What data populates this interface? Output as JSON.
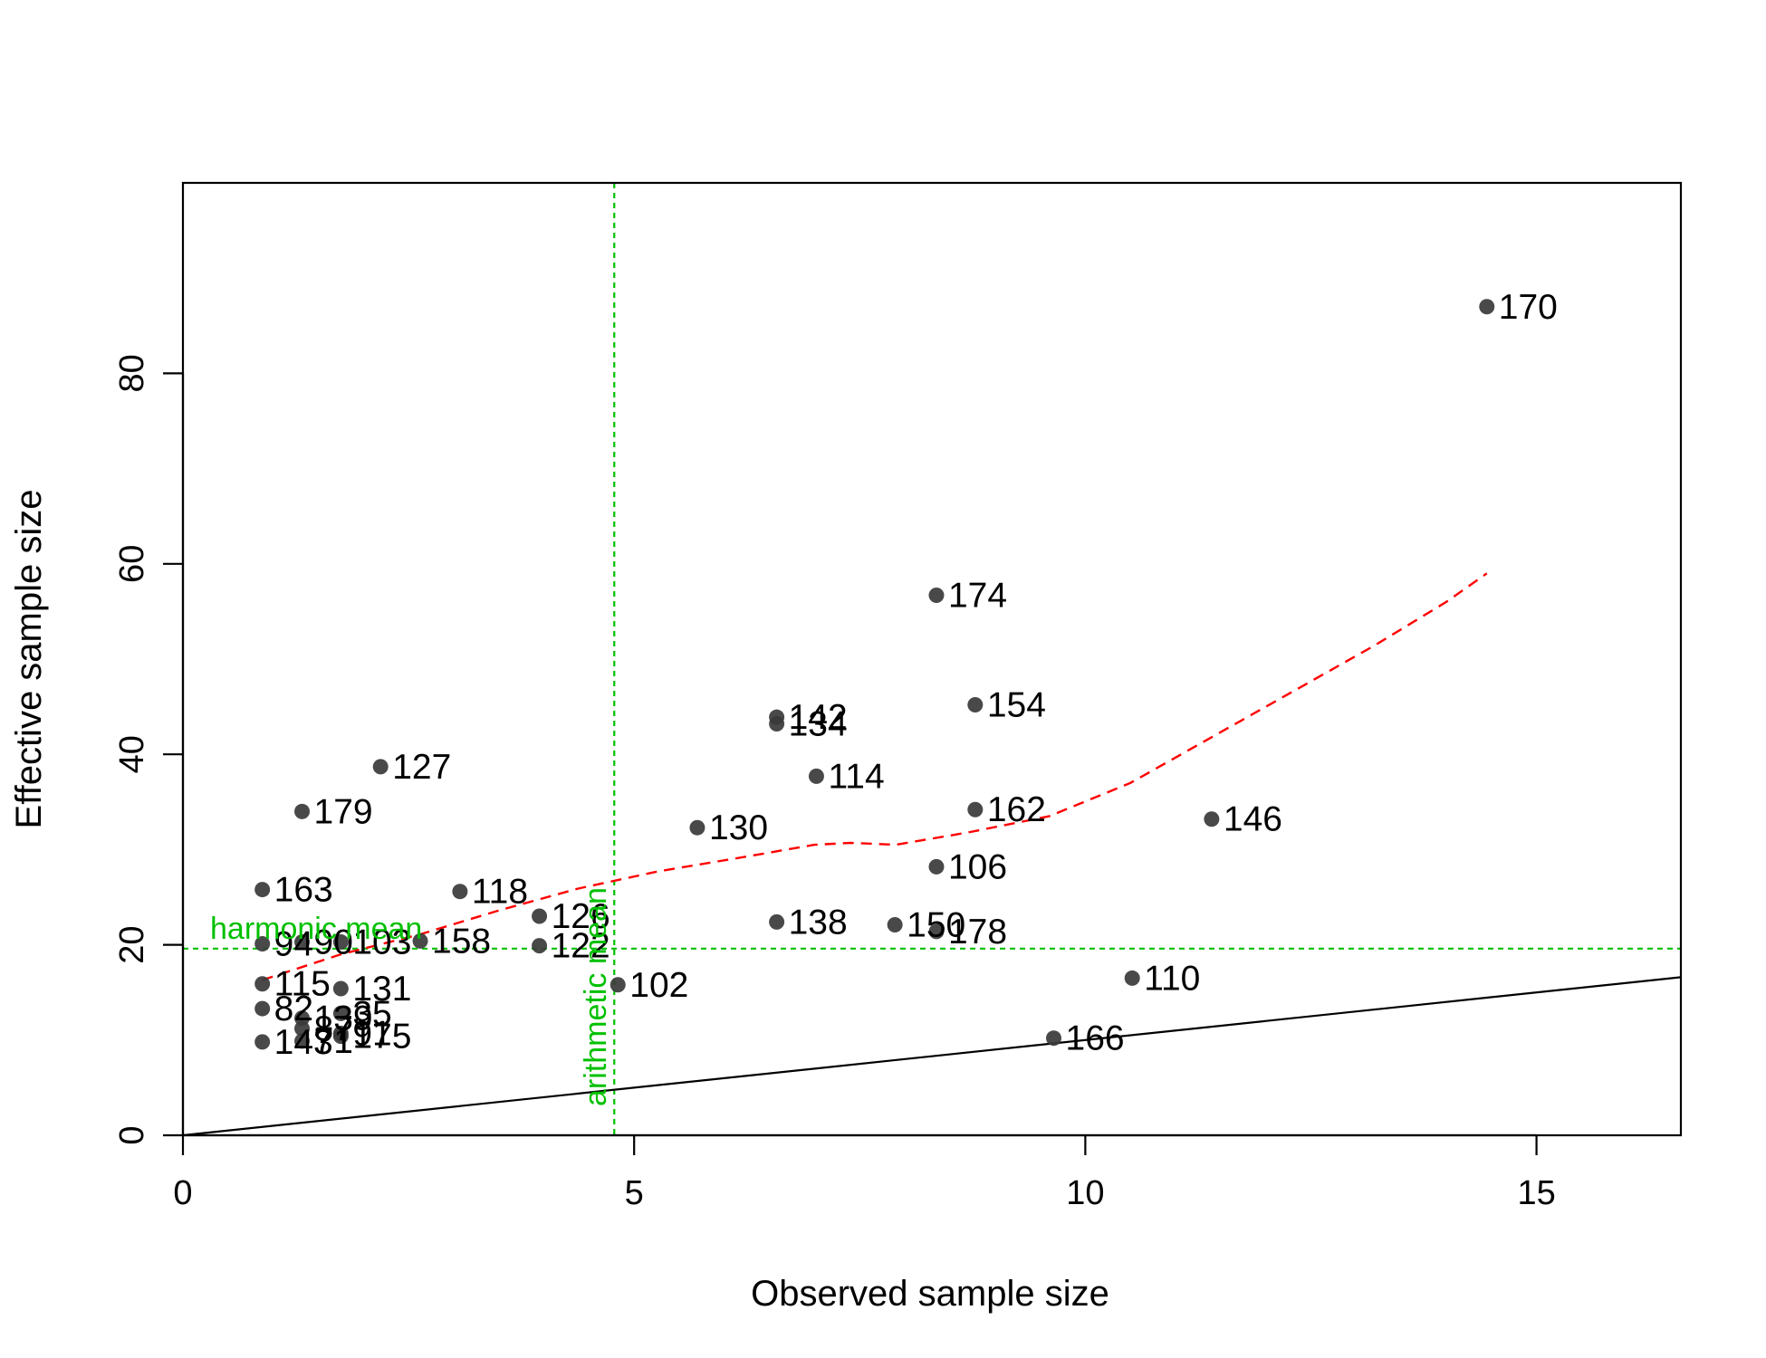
{
  "chart_data": {
    "type": "scatter",
    "title": "",
    "xlabel": "Observed sample size",
    "ylabel": "Effective sample size",
    "xlim": [
      0,
      16.6
    ],
    "ylim": [
      0,
      100
    ],
    "xticks": [
      0,
      5,
      10,
      15
    ],
    "yticks": [
      0,
      20,
      40,
      60,
      80
    ],
    "grid": false,
    "colors": {
      "points": "#3a3a3a",
      "trend": "#ff0000",
      "reference": "#00c000",
      "identity": "#000000"
    },
    "points": [
      {
        "label": "170",
        "x": 14.45,
        "y": 87.0
      },
      {
        "label": "174",
        "x": 8.35,
        "y": 56.7
      },
      {
        "label": "154",
        "x": 8.78,
        "y": 45.2
      },
      {
        "label": "142",
        "x": 6.58,
        "y": 43.9
      },
      {
        "label": "134",
        "x": 6.58,
        "y": 43.2
      },
      {
        "label": "114",
        "x": 7.02,
        "y": 37.7
      },
      {
        "label": "127",
        "x": 2.19,
        "y": 38.7
      },
      {
        "label": "179",
        "x": 1.32,
        "y": 34.0
      },
      {
        "label": "162",
        "x": 8.78,
        "y": 34.2
      },
      {
        "label": "146",
        "x": 11.4,
        "y": 33.2
      },
      {
        "label": "130",
        "x": 5.7,
        "y": 32.3
      },
      {
        "label": "106",
        "x": 8.35,
        "y": 28.2
      },
      {
        "label": "163",
        "x": 0.88,
        "y": 25.8
      },
      {
        "label": "118",
        "x": 3.07,
        "y": 25.6
      },
      {
        "label": "126",
        "x": 3.95,
        "y": 23.0
      },
      {
        "label": "138",
        "x": 6.58,
        "y": 22.4
      },
      {
        "label": "150",
        "x": 7.89,
        "y": 22.1
      },
      {
        "label": "178",
        "x": 8.35,
        "y": 21.4
      },
      {
        "label": "122",
        "x": 3.95,
        "y": 19.9
      },
      {
        "label": "158",
        "x": 2.63,
        "y": 20.4
      },
      {
        "label": "103",
        "x": 1.75,
        "y": 20.3
      },
      {
        "label": "90",
        "x": 1.32,
        "y": 20.3
      },
      {
        "label": "94",
        "x": 0.88,
        "y": 20.1
      },
      {
        "label": "102",
        "x": 4.82,
        "y": 15.8
      },
      {
        "label": "110",
        "x": 10.52,
        "y": 16.5
      },
      {
        "label": "166",
        "x": 9.65,
        "y": 10.2
      },
      {
        "label": "115",
        "x": 0.88,
        "y": 15.9
      },
      {
        "label": "131",
        "x": 1.75,
        "y": 15.4
      },
      {
        "label": "82",
        "x": 0.88,
        "y": 13.3
      },
      {
        "label": "139",
        "x": 1.32,
        "y": 12.3
      },
      {
        "label": "35",
        "x": 1.75,
        "y": 12.8
      },
      {
        "label": "87",
        "x": 1.32,
        "y": 11.2
      },
      {
        "label": "91",
        "x": 1.75,
        "y": 10.7
      },
      {
        "label": "175",
        "x": 1.75,
        "y": 10.4
      },
      {
        "label": "143",
        "x": 0.88,
        "y": 9.8
      },
      {
        "label": "71",
        "x": 1.32,
        "y": 9.9
      }
    ],
    "trend_line": {
      "style": "dashed",
      "x": [
        0.88,
        1.75,
        2.63,
        3.5,
        4.38,
        5.26,
        6.14,
        7.0,
        7.4,
        7.9,
        8.7,
        9.6,
        10.5,
        11.4,
        12.3,
        13.2,
        14.0,
        14.45
      ],
      "y": [
        16.3,
        19.0,
        21.1,
        23.6,
        25.9,
        27.7,
        29.1,
        30.5,
        30.7,
        30.5,
        31.8,
        33.5,
        37.0,
        41.8,
        46.6,
        51.4,
        56.0,
        59.0
      ]
    },
    "identity_line": {
      "x": [
        0,
        16.6
      ],
      "y": [
        0,
        16.6
      ]
    },
    "reference_lines": [
      {
        "orientation": "horizontal",
        "value": 19.6,
        "label": "harmonic mean"
      },
      {
        "orientation": "vertical",
        "value": 4.78,
        "label": "arithmetic mean"
      }
    ]
  }
}
